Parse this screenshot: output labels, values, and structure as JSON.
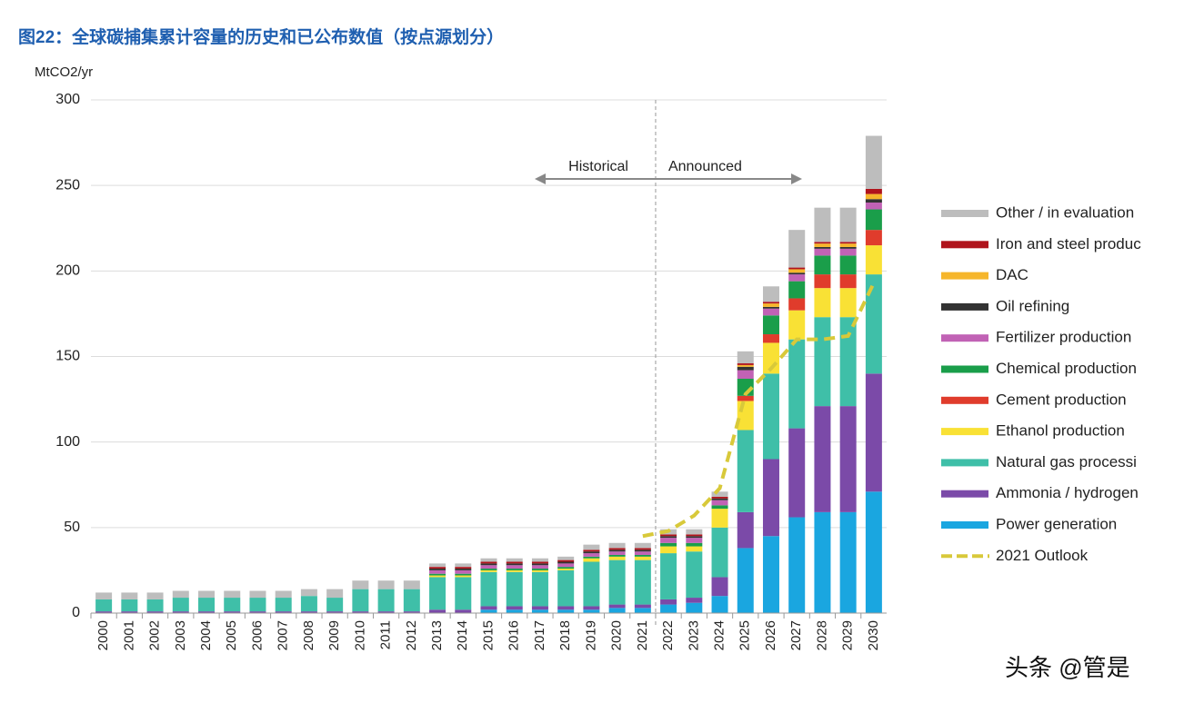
{
  "chart_data": {
    "type": "bar",
    "stacked": true,
    "title": "图22：全球碳捕集累计容量的历史和已公布数值（按点源划分）",
    "y_label": "MtCO2/yr",
    "annotations": [
      "Historical",
      "Announced"
    ],
    "watermark": "头条 @管是",
    "categories": [
      "2000",
      "2001",
      "2002",
      "2003",
      "2004",
      "2005",
      "2006",
      "2007",
      "2008",
      "2009",
      "2010",
      "2011",
      "2012",
      "2013",
      "2014",
      "2015",
      "2016",
      "2017",
      "2018",
      "2019",
      "2020",
      "2021",
      "2022",
      "2023",
      "2024",
      "2025",
      "2026",
      "2027",
      "2028",
      "2029",
      "2030"
    ],
    "ylim": [
      0,
      300
    ],
    "yticks": [
      0,
      50,
      100,
      150,
      200,
      250,
      300
    ],
    "grid": true,
    "series": [
      {
        "name": "Power generation",
        "color": "#1aa6e0",
        "values": [
          0,
          0,
          0,
          0,
          0,
          0,
          0,
          0,
          0,
          0,
          0,
          0,
          0,
          0,
          0,
          2,
          2,
          2,
          2,
          2,
          3,
          3,
          5,
          6,
          10,
          38,
          45,
          56,
          59,
          59,
          71
        ]
      },
      {
        "name": "Ammonia / hydrogen",
        "color": "#7b4aa8",
        "values": [
          1,
          1,
          1,
          1,
          1,
          1,
          1,
          1,
          1,
          1,
          1,
          1,
          1,
          2,
          2,
          2,
          2,
          2,
          2,
          2,
          2,
          2,
          3,
          3,
          11,
          21,
          45,
          52,
          62,
          62,
          69
        ]
      },
      {
        "name": "Natural gas processi",
        "color": "#3fbfa8",
        "values": [
          7,
          7,
          7,
          8,
          8,
          8,
          8,
          8,
          9,
          8,
          13,
          13,
          13,
          19,
          19,
          20,
          20,
          20,
          21,
          26,
          26,
          26,
          27,
          27,
          29,
          48,
          50,
          52,
          52,
          52,
          58
        ]
      },
      {
        "name": "Ethanol production",
        "color": "#f9e135",
        "values": [
          0,
          0,
          0,
          0,
          0,
          0,
          0,
          0,
          0,
          0,
          0,
          0,
          0,
          1,
          1,
          1,
          1,
          1,
          1,
          2,
          2,
          2,
          4,
          3,
          11,
          17,
          18,
          17,
          17,
          17,
          17
        ]
      },
      {
        "name": "Cement production",
        "color": "#e03c2c",
        "values": [
          0,
          0,
          0,
          0,
          0,
          0,
          0,
          0,
          0,
          0,
          0,
          0,
          0,
          0,
          0,
          0,
          0,
          0,
          0,
          0,
          0,
          0,
          0,
          0,
          0,
          3,
          5,
          7,
          8,
          8,
          9
        ]
      },
      {
        "name": "Chemical production",
        "color": "#1a9e4a",
        "values": [
          0,
          0,
          0,
          0,
          0,
          0,
          0,
          0,
          0,
          0,
          0,
          0,
          0,
          1,
          1,
          1,
          1,
          1,
          1,
          1,
          1,
          1,
          2,
          2,
          2,
          10,
          11,
          10,
          11,
          11,
          12
        ]
      },
      {
        "name": "Fertilizer production",
        "color": "#c162b5",
        "values": [
          0,
          0,
          0,
          0,
          0,
          0,
          0,
          0,
          0,
          0,
          0,
          0,
          0,
          2,
          2,
          2,
          2,
          2,
          2,
          2,
          2,
          2,
          3,
          3,
          3,
          5,
          4,
          4,
          4,
          4,
          4
        ]
      },
      {
        "name": "Oil refining",
        "color": "#333333",
        "values": [
          0,
          0,
          0,
          0,
          0,
          0,
          0,
          0,
          0,
          0,
          0,
          0,
          0,
          1,
          1,
          1,
          1,
          1,
          1,
          1,
          1,
          1,
          1,
          1,
          1,
          2,
          1,
          1,
          1,
          1,
          2
        ]
      },
      {
        "name": "DAC",
        "color": "#f6b62b",
        "values": [
          0,
          0,
          0,
          0,
          0,
          0,
          0,
          0,
          0,
          0,
          0,
          0,
          0,
          0,
          0,
          0,
          0,
          0,
          0,
          0,
          0,
          0,
          0,
          0,
          0,
          1,
          2,
          2,
          2,
          2,
          3
        ]
      },
      {
        "name": "Iron and steel produc",
        "color": "#b0141c",
        "values": [
          0,
          0,
          0,
          0,
          0,
          0,
          0,
          0,
          0,
          0,
          0,
          0,
          0,
          1,
          1,
          1,
          1,
          1,
          1,
          1,
          1,
          1,
          1,
          1,
          1,
          1,
          1,
          1,
          1,
          1,
          3
        ]
      },
      {
        "name": "Other / in evaluation",
        "color": "#bdbdbd",
        "values": [
          4,
          4,
          4,
          4,
          4,
          4,
          4,
          4,
          4,
          5,
          5,
          5,
          5,
          2,
          2,
          2,
          2,
          2,
          2,
          3,
          3,
          3,
          3,
          3,
          3,
          7,
          9,
          22,
          20,
          20,
          31
        ]
      },
      {
        "name": "2021 Outlook",
        "type": "line",
        "color": "#d8c93a",
        "values": [
          null,
          null,
          null,
          null,
          null,
          null,
          null,
          null,
          null,
          null,
          null,
          null,
          null,
          null,
          null,
          null,
          null,
          null,
          null,
          null,
          null,
          45,
          48,
          57,
          73,
          128,
          143,
          160,
          160,
          162,
          193
        ]
      }
    ]
  }
}
